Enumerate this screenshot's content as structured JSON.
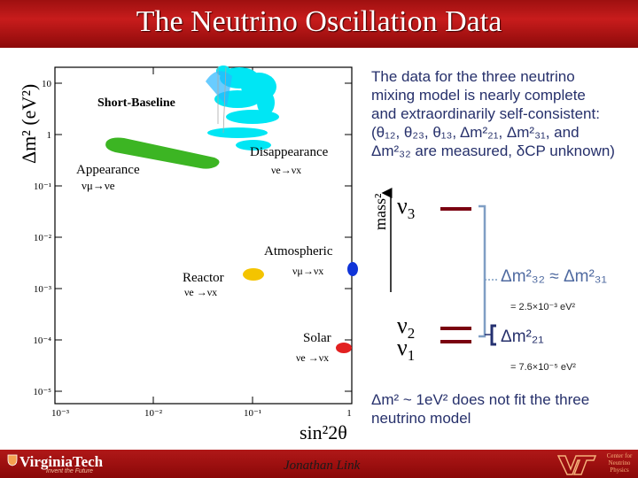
{
  "title": "The Neutrino Oscillation Data",
  "plot": {
    "ylabel": "Δm² (eV²)",
    "xlabel": "sin²2θ",
    "x_ticks": [
      "10⁻³",
      "10⁻²",
      "10⁻¹",
      "1"
    ],
    "y_ticks": [
      "10",
      "1",
      "10⁻¹",
      "10⁻²",
      "10⁻³",
      "10⁻⁴",
      "10⁻⁵"
    ],
    "labels": {
      "short_baseline": "Short-Baseline",
      "disappearance": "Disappearance",
      "disappearance_sub": "νe→νx",
      "appearance": "Appearance",
      "appearance_sub": "νμ→νe",
      "atmospheric": "Atmospheric",
      "atmospheric_sub": "νμ→νx",
      "reactor": "Reactor",
      "reactor_sub": "νe →νx",
      "solar": "Solar",
      "solar_sub": "νe →νx"
    },
    "colors": {
      "short_baseline": "#00e0f0",
      "appearance": "#3ab820",
      "reactor": "#f0c000",
      "solar": "#e02020",
      "atmospheric": "#1030d0"
    }
  },
  "text": {
    "para1_line1": "The data for the three neutrino",
    "para1_line2": "mixing model is nearly complete",
    "para1_line3": "and extraordinarily self-consistent:",
    "para1_line4": "(θ₁₂, θ₂₃, θ₁₃, Δm²₂₁, Δm²₃₁, and",
    "para1_line5": "Δm²₃₂ are measured, δCP unknown)",
    "para2_line1": "Δm² ~ 1eV² does not fit the three",
    "para2_line2": "neutrino model"
  },
  "mass_diagram": {
    "axis_label": "mass²",
    "nu3": "ν",
    "nu3_sub": "3",
    "nu2": "ν",
    "nu2_sub": "2",
    "nu1": "ν",
    "nu1_sub": "1",
    "atm_relation": "Δm²₃₂ ≈ Δm²₃₁",
    "atm_value": "= 2.5×10⁻³ eV²",
    "sol_relation": "Δm²₂₁",
    "sol_value": "= 7.6×10⁻⁵ eV²"
  },
  "footer": {
    "logo": "VirginiaTech",
    "tagline": "Invent the Future",
    "author": "Jonathan Link",
    "center": "Center for Neutrino Physics"
  }
}
